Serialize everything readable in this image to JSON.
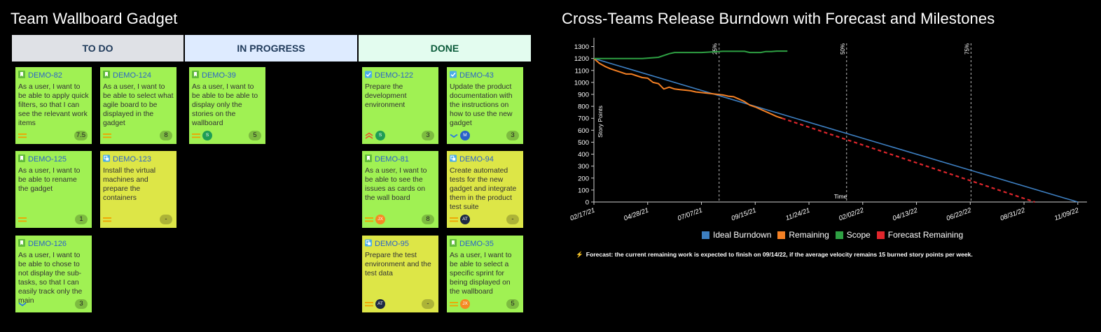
{
  "wallboard": {
    "title": "Team Wallboard Gadget",
    "columns": [
      {
        "name": "TO DO",
        "bg": "#dfe1e6"
      },
      {
        "name": "IN PROGRESS",
        "bg": "#deebff"
      },
      {
        "name": "DONE",
        "bg": "#e3fcef"
      }
    ],
    "cards": [
      {
        "key": "DEMO-82",
        "summary": "As a user, I want to be able to apply quick filters, so that I can see the relevant work items",
        "type": "story-icon",
        "priority": "medium-priority-icon",
        "estimate": "7.5",
        "color": "green"
      },
      {
        "key": "DEMO-124",
        "summary": "As a user, I want to be able to select what agile board to be displayed in the gadget",
        "type": "story-icon",
        "priority": "medium-priority-icon",
        "estimate": "8",
        "color": "green"
      },
      {
        "key": "DEMO-125",
        "summary": "As a user, I want to be able to rename the gadget",
        "type": "story-icon",
        "priority": "medium-priority-icon",
        "estimate": "1",
        "color": "green"
      },
      {
        "key": "DEMO-123",
        "summary": "Install the virtual machines and prepare the containers",
        "type": "subtask-icon",
        "priority": "medium-priority-icon",
        "estimate": "-",
        "color": "yellow"
      },
      {
        "key": "DEMO-126",
        "summary": "As a user, I want to be able to chose to not display the sub-tasks, so that I can easily track only the main",
        "type": "story-icon",
        "priority": "low-priority-icon",
        "estimate": "3",
        "color": "green"
      },
      {
        "key": "DEMO-39",
        "summary": "As a user, I want to be able to be able to display only the stories on the wallboard",
        "type": "story-icon",
        "priority": "medium-priority-icon",
        "avatar": "S",
        "avatarColor": "#1f9d55",
        "estimate": "5",
        "color": "green"
      },
      {
        "key": "DEMO-122",
        "summary": "Prepare the development environment",
        "type": "task-icon",
        "priority": "high-priority-icon",
        "avatar": "S",
        "avatarColor": "#1f9d55",
        "estimate": "3",
        "color": "green"
      },
      {
        "key": "DEMO-43",
        "summary": "Update the product documentation with the instructions on how to use the new gadget",
        "type": "task-icon",
        "priority": "low-priority-icon",
        "avatar": "M",
        "avatarColor": "#2a62c9",
        "estimate": "3",
        "color": "green"
      },
      {
        "key": "DEMO-81",
        "summary": "As a user, I want to be able to see the issues as cards on the wall board",
        "type": "story-icon",
        "priority": "medium-priority-icon",
        "avatar": "JX",
        "avatarColor": "#f58a23",
        "estimate": "8",
        "color": "green"
      },
      {
        "key": "DEMO-94",
        "summary": "Create automated tests for the new gadget and integrate them in the product test suite",
        "type": "subtask-icon",
        "priority": "medium-priority-icon",
        "avatar": "AT",
        "avatarColor": "#1e2a44",
        "estimate": "-",
        "color": "yellow"
      },
      {
        "key": "DEMO-95",
        "summary": "Prepare the test environment and the test data",
        "type": "subtask-icon",
        "priority": "medium-priority-icon",
        "avatar": "AT",
        "avatarColor": "#1e2a44",
        "estimate": "-",
        "color": "yellow"
      },
      {
        "key": "DEMO-35",
        "summary": "As a user, I want to be able to select a specific sprint for being displayed on the wallboard",
        "type": "story-icon",
        "priority": "medium-priority-icon",
        "avatar": "JX",
        "avatarColor": "#f58a23",
        "estimate": "5",
        "color": "green"
      }
    ]
  },
  "burndown": {
    "title": "Cross-Teams Release Burndown with Forecast and Milestones",
    "forecast_text": "Forecast: the current remaining work is expected to finish on 09/14/22, if the average velocity remains 15 burned story points per week."
  },
  "chart_data": {
    "type": "line",
    "title": "Cross-Teams Release Burndown with Forecast and Milestones",
    "xlabel": "Time",
    "ylabel": "Story Points",
    "ylim": [
      0,
      1350
    ],
    "yticks": [
      0,
      100,
      200,
      300,
      400,
      500,
      600,
      700,
      800,
      900,
      1000,
      1100,
      1200,
      1300
    ],
    "xlim": [
      "02/17/21",
      "11/21/22"
    ],
    "xticks": [
      "02/17/21",
      "04/28/21",
      "07/07/21",
      "09/15/21",
      "11/24/21",
      "02/02/22",
      "04/13/22",
      "06/22/22",
      "08/31/22",
      "11/09/22"
    ],
    "milestones": [
      {
        "label": "25%",
        "date": "07/30/21"
      },
      {
        "label": "50%",
        "date": "01/12/22"
      },
      {
        "label": "75%",
        "date": "06/23/22"
      }
    ],
    "legend": "bottom",
    "grid": false,
    "series": [
      {
        "name": "Ideal Burndown",
        "color": "#3d7fc1",
        "points": [
          [
            "02/17/21",
            1200
          ],
          [
            "11/09/22",
            0
          ]
        ]
      },
      {
        "name": "Remaining",
        "color": "#f48024",
        "points": [
          [
            "02/17/21",
            1200
          ],
          [
            "02/24/21",
            1160
          ],
          [
            "03/03/21",
            1135
          ],
          [
            "03/10/21",
            1115
          ],
          [
            "03/17/21",
            1100
          ],
          [
            "03/24/21",
            1085
          ],
          [
            "03/31/21",
            1070
          ],
          [
            "04/07/21",
            1070
          ],
          [
            "04/14/21",
            1055
          ],
          [
            "04/21/21",
            1040
          ],
          [
            "04/28/21",
            1035
          ],
          [
            "05/05/21",
            1000
          ],
          [
            "05/12/21",
            990
          ],
          [
            "05/19/21",
            945
          ],
          [
            "05/26/21",
            960
          ],
          [
            "06/02/21",
            945
          ],
          [
            "06/09/21",
            940
          ],
          [
            "06/16/21",
            935
          ],
          [
            "06/23/21",
            930
          ],
          [
            "06/30/21",
            920
          ],
          [
            "07/07/21",
            915
          ],
          [
            "07/14/21",
            910
          ],
          [
            "07/21/21",
            905
          ],
          [
            "07/28/21",
            900
          ],
          [
            "08/04/21",
            895
          ],
          [
            "08/11/21",
            885
          ],
          [
            "08/18/21",
            880
          ],
          [
            "08/25/21",
            860
          ],
          [
            "09/01/21",
            840
          ],
          [
            "09/08/21",
            810
          ],
          [
            "09/15/21",
            795
          ],
          [
            "09/22/21",
            775
          ],
          [
            "09/29/21",
            755
          ],
          [
            "10/06/21",
            735
          ],
          [
            "10/13/21",
            715
          ],
          [
            "10/20/21",
            700
          ]
        ]
      },
      {
        "name": "Scope",
        "color": "#2ea043",
        "points": [
          [
            "02/17/21",
            1200
          ],
          [
            "04/21/21",
            1200
          ],
          [
            "05/12/21",
            1210
          ],
          [
            "05/26/21",
            1240
          ],
          [
            "06/02/21",
            1250
          ],
          [
            "07/07/21",
            1250
          ],
          [
            "07/21/21",
            1255
          ],
          [
            "08/04/21",
            1260
          ],
          [
            "09/01/21",
            1260
          ],
          [
            "09/08/21",
            1250
          ],
          [
            "09/22/21",
            1250
          ],
          [
            "09/29/21",
            1258
          ],
          [
            "10/06/21",
            1258
          ],
          [
            "10/13/21",
            1262
          ],
          [
            "10/27/21",
            1262
          ]
        ]
      },
      {
        "name": "Forecast Remaining",
        "color": "#e0262c",
        "dashed": true,
        "points": [
          [
            "10/20/21",
            700
          ],
          [
            "09/14/22",
            0
          ]
        ]
      }
    ]
  }
}
